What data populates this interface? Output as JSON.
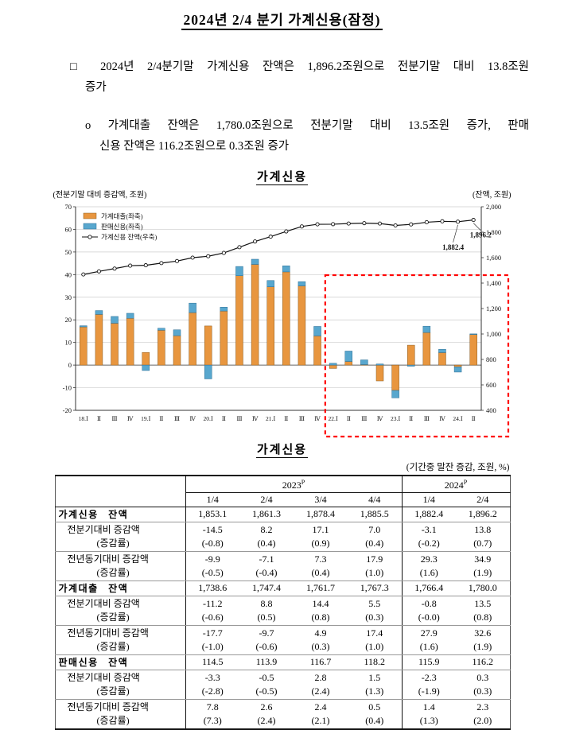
{
  "page": {
    "title": "2024년 2/4 분기 가계신용(잠정)"
  },
  "body": {
    "p1_line1": "□ 2024년 2/4분기말 가계신용 잔액은 1,896.2조원으로 전분기말 대비 13.8조원",
    "p1_line2": "증가",
    "p2_line1": "o 가계대출 잔액은 1,780.0조원으로 전분기말 대비 13.5조원 증가, 판매",
    "p2_line2": "신용 잔액은 116.2조원으로 0.3조원 증가"
  },
  "chart": {
    "title": "가계신용",
    "left_axis_caption": "(전분기말 대비 증감액, 조원)",
    "right_axis_caption": "(잔액, 조원)"
  },
  "chart_data": {
    "type": "bar",
    "categories": [
      "18.Ⅰ",
      "Ⅱ",
      "Ⅲ",
      "Ⅳ",
      "19.Ⅰ",
      "Ⅱ",
      "Ⅲ",
      "Ⅳ",
      "20.Ⅰ",
      "Ⅱ",
      "Ⅲ",
      "Ⅳ",
      "21.Ⅰ",
      "Ⅱ",
      "Ⅲ",
      "Ⅳ",
      "22.Ⅰ",
      "Ⅱ",
      "Ⅲ",
      "Ⅳ",
      "23.Ⅰ",
      "Ⅱ",
      "Ⅲ",
      "Ⅳ",
      "24.Ⅰ",
      "Ⅱ"
    ],
    "series": [
      {
        "key": "loans",
        "name": "가계대출(좌축)",
        "type": "bar",
        "axis": "left",
        "color": "#e8963f",
        "stroke": "#8a5a1e",
        "values": [
          16.9,
          22.4,
          18.5,
          20.7,
          5.6,
          15.4,
          13.0,
          23.2,
          17.3,
          23.9,
          39.5,
          44.5,
          34.6,
          41.2,
          35.0,
          12.9,
          -1.5,
          1.6,
          0.2,
          -7.0,
          -11.2,
          8.8,
          14.4,
          5.5,
          -0.8,
          13.5
        ]
      },
      {
        "key": "sales",
        "name": "판매신용(좌축)",
        "type": "bar",
        "axis": "left",
        "color": "#58a7ce",
        "stroke": "#2d6e94",
        "values": [
          0.5,
          1.7,
          3.0,
          2.2,
          -2.4,
          0.9,
          2.6,
          4.2,
          -6.1,
          1.7,
          4.1,
          2.3,
          2.8,
          2.7,
          1.9,
          4.2,
          0.8,
          4.6,
          2.1,
          0.5,
          -3.3,
          -0.5,
          2.8,
          1.5,
          -2.3,
          0.3
        ]
      },
      {
        "key": "balance",
        "name": "가계신용 잔액(우축)",
        "type": "line",
        "axis": "right",
        "color": "#111111",
        "values": [
          1468,
          1492,
          1514,
          1537,
          1540,
          1557,
          1573,
          1600,
          1611,
          1637,
          1682,
          1727,
          1765,
          1806,
          1845,
          1862,
          1863,
          1868,
          1871,
          1868,
          1853.1,
          1861.3,
          1878.4,
          1885.5,
          1882.4,
          1896.2
        ]
      }
    ],
    "left_axis": {
      "min": -20,
      "max": 70,
      "step": 10
    },
    "right_axis": {
      "min": 400,
      "max": 2000,
      "step": 200
    },
    "annotations": [
      {
        "label": "1,882.4",
        "index": 24
      },
      {
        "label": "1,896.2",
        "index": 25
      }
    ],
    "highlight_box": {
      "from_index": 16,
      "to_index": 25
    },
    "legend_position": "top-left",
    "grid": true
  },
  "table_section": {
    "title": "가계신용",
    "unit_note": "(기간중 말잔 증감, 조원, %)"
  },
  "table": {
    "year_headers": [
      {
        "label": "2023",
        "sup": "P",
        "span": 4
      },
      {
        "label": "2024",
        "sup": "P",
        "span": 2
      }
    ],
    "quarter_headers": [
      "1/4",
      "2/4",
      "3/4",
      "4/4",
      "1/4",
      "2/4"
    ],
    "rows": [
      {
        "label": "가계신용 잔액",
        "bold": true,
        "group": false,
        "values": [
          "1,853.1",
          "1,861.3",
          "1,878.4",
          "1,885.5",
          "1,882.4",
          "1,896.2"
        ],
        "values2": null
      },
      {
        "label": "전분기대비 증감액",
        "label2": "(증감률)",
        "bold": false,
        "group": false,
        "values": [
          "-14.5",
          "8.2",
          "17.1",
          "7.0",
          "-3.1",
          "13.8"
        ],
        "values2": [
          "(-0.8)",
          "(0.4)",
          "(0.9)",
          "(0.4)",
          "(-0.2)",
          "(0.7)"
        ]
      },
      {
        "label": "전년동기대비 증감액",
        "label2": "(증감률)",
        "bold": false,
        "group": false,
        "values": [
          "-9.9",
          "-7.1",
          "7.3",
          "17.9",
          "29.3",
          "34.9"
        ],
        "values2": [
          "(-0.5)",
          "(-0.4)",
          "(0.4)",
          "(1.0)",
          "(1.6)",
          "(1.9)"
        ]
      },
      {
        "label": "가계대출 잔액",
        "bold": true,
        "group": true,
        "values": [
          "1,738.6",
          "1,747.4",
          "1,761.7",
          "1,767.3",
          "1,766.4",
          "1,780.0"
        ],
        "values2": null
      },
      {
        "label": "전분기대비 증감액",
        "label2": "(증감률)",
        "bold": false,
        "group": false,
        "values": [
          "-11.2",
          "8.8",
          "14.4",
          "5.5",
          "-0.8",
          "13.5"
        ],
        "values2": [
          "(-0.6)",
          "(0.5)",
          "(0.8)",
          "(0.3)",
          "(-0.0)",
          "(0.8)"
        ]
      },
      {
        "label": "전년동기대비 증감액",
        "label2": "(증감률)",
        "bold": false,
        "group": false,
        "values": [
          "-17.7",
          "-9.7",
          "4.9",
          "17.4",
          "27.9",
          "32.6"
        ],
        "values2": [
          "(-1.0)",
          "(-0.6)",
          "(0.3)",
          "(1.0)",
          "(1.6)",
          "(1.9)"
        ]
      },
      {
        "label": "판매신용 잔액",
        "bold": true,
        "group": true,
        "values": [
          "114.5",
          "113.9",
          "116.7",
          "118.2",
          "115.9",
          "116.2"
        ],
        "values2": null
      },
      {
        "label": "전분기대비 증감액",
        "label2": "(증감률)",
        "bold": false,
        "group": false,
        "values": [
          "-3.3",
          "-0.5",
          "2.8",
          "1.5",
          "-2.3",
          "0.3"
        ],
        "values2": [
          "(-2.8)",
          "(-0.5)",
          "(2.4)",
          "(1.3)",
          "(-1.9)",
          "(0.3)"
        ]
      },
      {
        "label": "전년동기대비 증감액",
        "label2": "(증감률)",
        "bold": false,
        "group": false,
        "values": [
          "7.8",
          "2.6",
          "2.4",
          "0.5",
          "1.4",
          "2.3"
        ],
        "values2": [
          "(7.3)",
          "(2.4)",
          "(2.1)",
          "(0.4)",
          "(1.3)",
          "(2.0)"
        ]
      }
    ]
  }
}
